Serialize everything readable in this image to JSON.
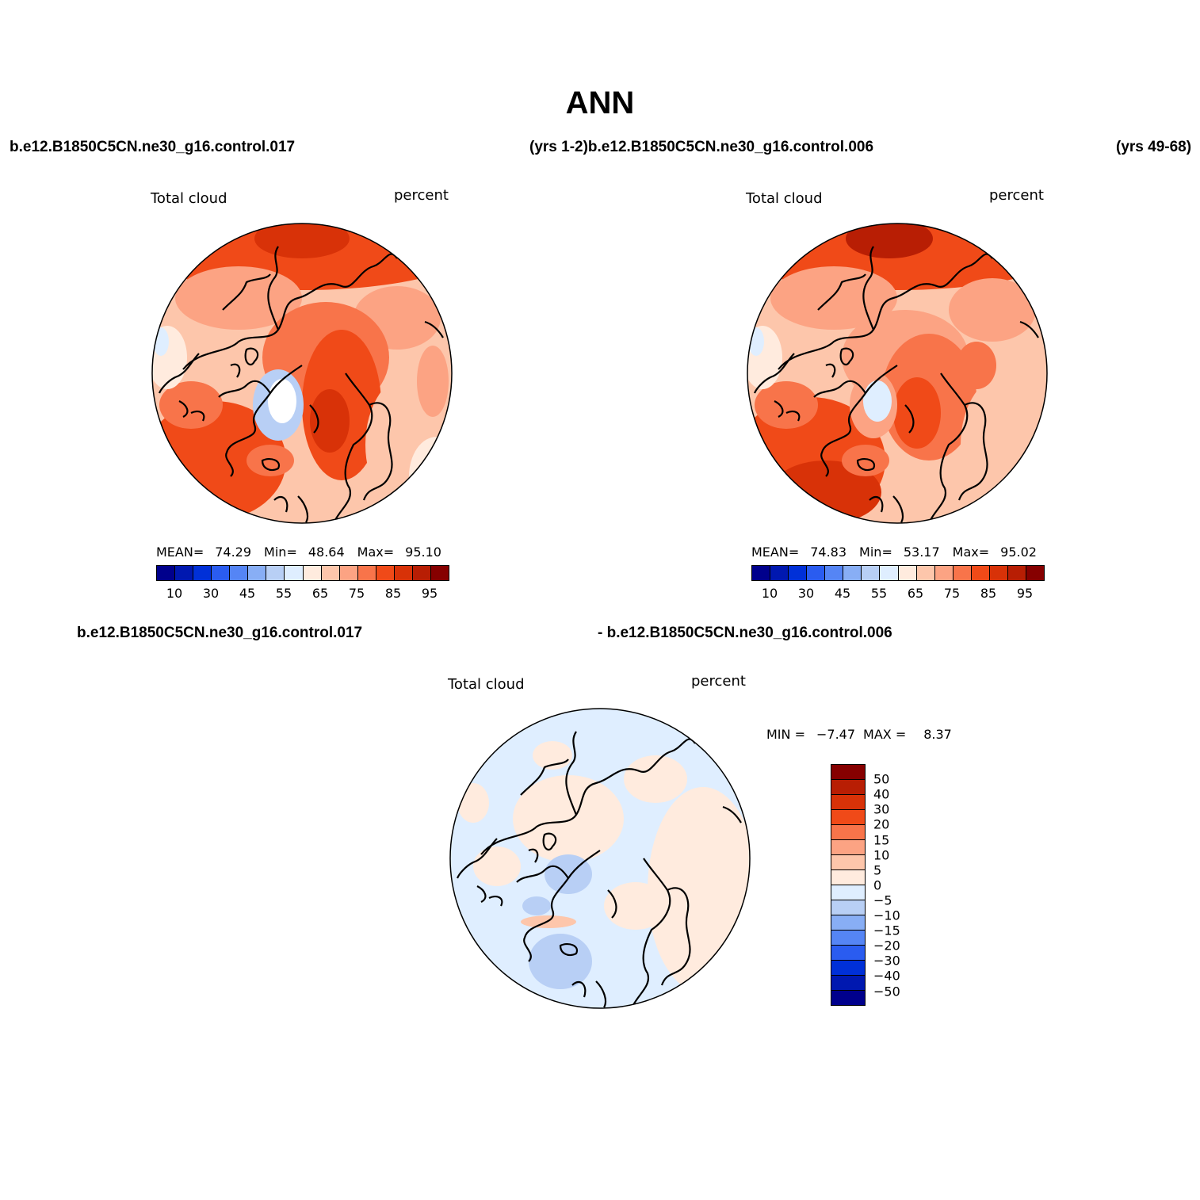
{
  "title": "ANN",
  "headers": {
    "case1": "b.e12.B1850C5CN.ne30_g16.control.017",
    "years1_case2": "(yrs 1-2)b.e12.B1850C5CN.ne30_g16.control.006",
    "years2": "(yrs 49-68)",
    "diff_case1": "b.e12.B1850C5CN.ne30_g16.control.017",
    "diff_case2": "- b.e12.B1850C5CN.ne30_g16.control.006"
  },
  "panels": [
    {
      "variable": "Total cloud",
      "units": "percent",
      "mean_label": "MEAN=",
      "mean": "74.29",
      "min_label": "Min=",
      "min": "48.64",
      "max_label": "Max=",
      "max": "95.10"
    },
    {
      "variable": "Total cloud",
      "units": "percent",
      "mean_label": "MEAN=",
      "mean": "74.83",
      "min_label": "Min=",
      "min": "53.17",
      "max_label": "Max=",
      "max": "95.02"
    }
  ],
  "diff_panel": {
    "variable": "Total cloud",
    "units": "percent",
    "min_label": "MIN =",
    "min": "−7.47",
    "max_label": "MAX =",
    "max": "8.37"
  },
  "colorbar_main": {
    "colors": [
      "#00008c",
      "#0018b0",
      "#0030d8",
      "#2a5cf0",
      "#5585f5",
      "#88aef5",
      "#b8cff5",
      "#dfeeff",
      "#ffebde",
      "#fdc6ab",
      "#fca383",
      "#f8744a",
      "#f04a18",
      "#d83208",
      "#b81e04",
      "#860000"
    ],
    "tick_labels": [
      "10",
      "30",
      "45",
      "55",
      "65",
      "75",
      "85",
      "95"
    ]
  },
  "colorbar_diff": {
    "colors": [
      "#860000",
      "#b81e04",
      "#d83208",
      "#f04a18",
      "#f8744a",
      "#fca383",
      "#fdc6ab",
      "#ffebde",
      "#dfeeff",
      "#b8cff5",
      "#88aef5",
      "#5585f5",
      "#2a5cf0",
      "#0030d8",
      "#0018b0",
      "#00008c"
    ],
    "tick_labels": [
      "50",
      "40",
      "30",
      "20",
      "15",
      "10",
      "5",
      "0",
      "−5",
      "−10",
      "−15",
      "−20",
      "−30",
      "−40",
      "−50"
    ]
  },
  "chart_data": {
    "type": "heatmap",
    "projection": "north polar stereographic",
    "field": "Total cloud",
    "units": "percent",
    "season": "ANN",
    "maps": [
      {
        "case": "b.e12.B1850C5CN.ne30_g16.control.017",
        "mean": 74.29,
        "min": 48.64,
        "max": 95.1
      },
      {
        "case": "b.e12.B1850C5CN.ne30_g16.control.006",
        "mean": 74.83,
        "min": 53.17,
        "max": 95.02
      },
      {
        "case": "difference",
        "min": -7.47,
        "max": 8.37
      }
    ],
    "contour_levels_main": [
      10,
      20,
      30,
      40,
      45,
      50,
      55,
      60,
      65,
      70,
      75,
      80,
      85,
      90,
      95
    ],
    "contour_levels_diff": [
      -50,
      -40,
      -30,
      -20,
      -15,
      -10,
      -5,
      0,
      5,
      10,
      15,
      20,
      30,
      40,
      50
    ]
  }
}
